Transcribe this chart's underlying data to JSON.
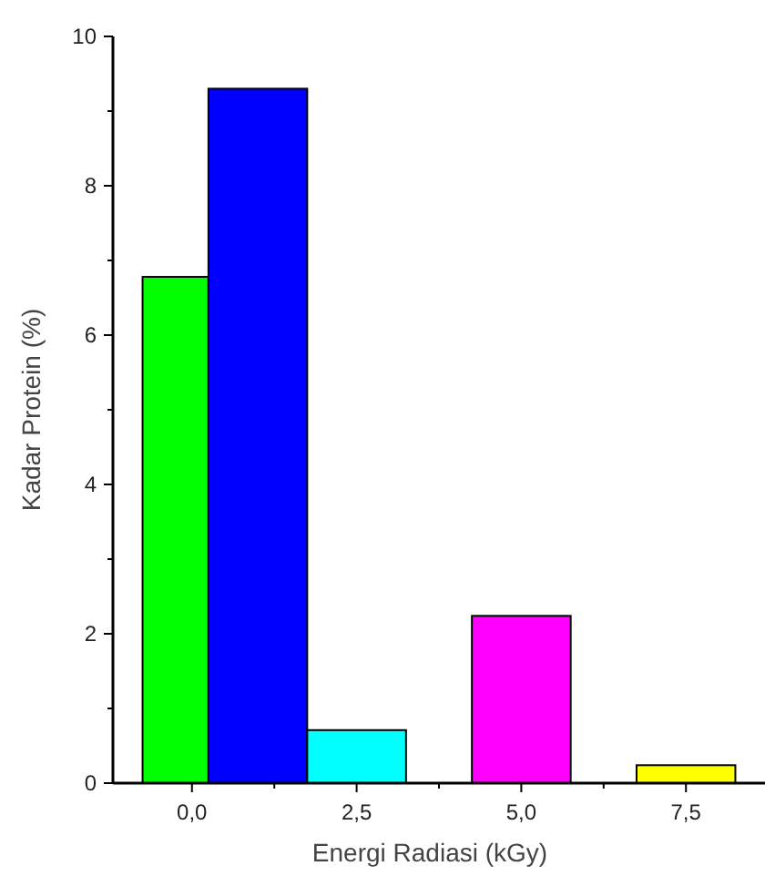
{
  "chart_data": {
    "type": "histogram",
    "xlabel": "Energi Radiasi (kGy)",
    "ylabel": "Kadar Protein (%)",
    "bins": [
      -0.75,
      0.25,
      1.75,
      3.25,
      4.25,
      5.75,
      6.75,
      8.25
    ],
    "values": [
      6.78,
      9.3,
      0.71,
      null,
      2.24,
      null,
      0.24
    ],
    "colors": [
      "#00ff00",
      "#0000ff",
      "#00ffff",
      null,
      "#ff00ff",
      null,
      "#ffff00"
    ],
    "xlim": [
      -1.2,
      8.7
    ],
    "xticks": [
      {
        "value": 0,
        "label": "0,0"
      },
      {
        "value": 1.25,
        "label": null
      },
      {
        "value": 2.5,
        "label": "2,5"
      },
      {
        "value": 3.75,
        "label": null
      },
      {
        "value": 5,
        "label": "5,0"
      },
      {
        "value": 6.25,
        "label": null
      },
      {
        "value": 7.5,
        "label": "7,5"
      }
    ],
    "ylim": [
      0,
      10
    ],
    "yticks": [
      0,
      {
        "value": 1,
        "label": null
      },
      2,
      {
        "value": 3,
        "label": null
      },
      4,
      {
        "value": 5,
        "label": null
      },
      6,
      {
        "value": 7,
        "label": null
      },
      8,
      {
        "value": 9,
        "label": null
      },
      10
    ]
  }
}
